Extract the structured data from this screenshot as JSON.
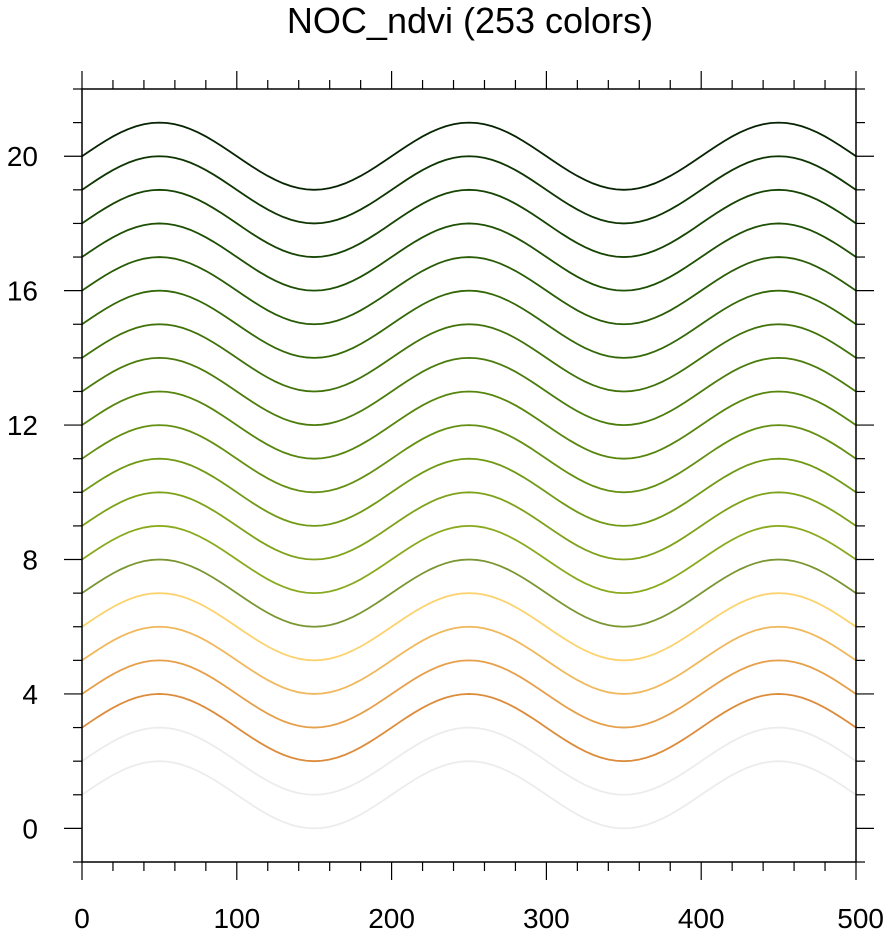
{
  "chart_data": {
    "type": "line",
    "title": "NOC_ndvi (253 colors)",
    "xlabel": "",
    "ylabel": "",
    "xlim": [
      0,
      500
    ],
    "ylim": [
      -1,
      22
    ],
    "x_ticks": [
      0,
      100,
      200,
      300,
      400,
      500
    ],
    "x_tick_labels": [
      "0",
      "100",
      "200",
      "300",
      "400",
      "500"
    ],
    "y_ticks": [
      0,
      4,
      8,
      12,
      16,
      20
    ],
    "y_tick_labels": [
      "0",
      "4",
      "8",
      "12",
      "16",
      "20"
    ],
    "x_minor_step": 20,
    "y_minor_step": 1,
    "grid": false,
    "legend": "none",
    "function": "y = offset + sin(2*pi*x/200)",
    "x_sample_step": 5,
    "series": [
      {
        "offset": 1,
        "color": "#ececec"
      },
      {
        "offset": 2,
        "color": "#ececec"
      },
      {
        "offset": 3,
        "color": "#dc8c3c"
      },
      {
        "offset": 4,
        "color": "#e6a04b"
      },
      {
        "offset": 5,
        "color": "#f0b85c"
      },
      {
        "offset": 6,
        "color": "#fcd26e"
      },
      {
        "offset": 7,
        "color": "#7a9632"
      },
      {
        "offset": 8,
        "color": "#8aaa1e"
      },
      {
        "offset": 9,
        "color": "#7ea21a"
      },
      {
        "offset": 10,
        "color": "#709a16"
      },
      {
        "offset": 11,
        "color": "#639012"
      },
      {
        "offset": 12,
        "color": "#56860e"
      },
      {
        "offset": 13,
        "color": "#4a7c0b"
      },
      {
        "offset": 14,
        "color": "#3f7208"
      },
      {
        "offset": 15,
        "color": "#336806"
      },
      {
        "offset": 16,
        "color": "#285c05"
      },
      {
        "offset": 17,
        "color": "#1e5004"
      },
      {
        "offset": 18,
        "color": "#164403"
      },
      {
        "offset": 19,
        "color": "#0e3602"
      },
      {
        "offset": 20,
        "color": "#062402"
      }
    ]
  }
}
